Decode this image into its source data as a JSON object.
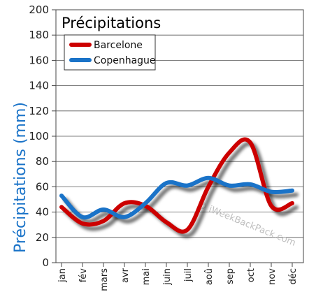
{
  "chart_data": {
    "type": "line",
    "title": "Précipitations",
    "ylabel": "Précipitations (mm)",
    "xlabel": "",
    "categories": [
      "jan",
      "fév",
      "mars",
      "avr",
      "mai",
      "juin",
      "juil",
      "aoû",
      "sep",
      "oct",
      "nov",
      "déc"
    ],
    "ylim": [
      0,
      200
    ],
    "yticks": [
      0,
      20,
      40,
      60,
      80,
      100,
      120,
      140,
      160,
      180,
      200
    ],
    "grid": true,
    "legend": "top-left",
    "series": [
      {
        "name": "Barcelone",
        "color": "#cc0000",
        "values": [
          44,
          31,
          33,
          47,
          45,
          32,
          26,
          60,
          87,
          95,
          45,
          47
        ]
      },
      {
        "name": "Copenhague",
        "color": "#1a73c8",
        "values": [
          53,
          36,
          42,
          36,
          47,
          63,
          61,
          67,
          61,
          62,
          56,
          57
        ]
      }
    ],
    "watermark": "© iWeekBackPack.com",
    "ylabel_color": "#1a73c8"
  }
}
